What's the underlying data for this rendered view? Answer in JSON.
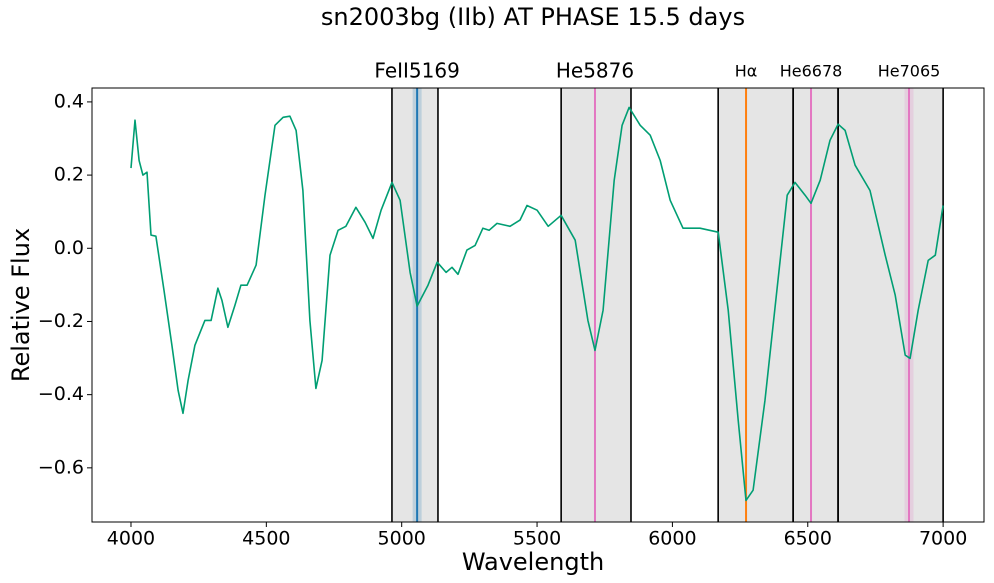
{
  "chart_data": {
    "type": "line",
    "title": "sn2003bg (IIb) AT PHASE 15.5 days",
    "xlabel": "Wavelength",
    "ylabel": "Relative Flux",
    "color": "#009e73",
    "x": [
      4000,
      4015,
      4030,
      4044,
      4059,
      4074,
      4092,
      4122,
      4151,
      4174,
      4192,
      4211,
      4236,
      4273,
      4296,
      4321,
      4336,
      4358,
      4384,
      4406,
      4429,
      4462,
      4495,
      4532,
      4562,
      4587,
      4610,
      4635,
      4661,
      4683,
      4706,
      4735,
      4765,
      4794,
      4831,
      4865,
      4894,
      4924,
      4964,
      4994,
      5031,
      5057,
      5097,
      5131,
      5164,
      5186,
      5208,
      5241,
      5271,
      5300,
      5323,
      5352,
      5400,
      5437,
      5463,
      5500,
      5541,
      5589,
      5641,
      5688,
      5714,
      5744,
      5785,
      5814,
      5840,
      5881,
      5918,
      5955,
      5992,
      6039,
      6102,
      6169,
      6206,
      6243,
      6272,
      6298,
      6342,
      6390,
      6424,
      6453,
      6490,
      6512,
      6546,
      6582,
      6612,
      6638,
      6675,
      6730,
      6786,
      6823,
      6860,
      6878,
      6908,
      6945,
      6971,
      7000
    ],
    "values": [
      0.219,
      0.35,
      0.24,
      0.2,
      0.208,
      0.036,
      0.033,
      -0.115,
      -0.265,
      -0.388,
      -0.451,
      -0.361,
      -0.265,
      -0.197,
      -0.197,
      -0.109,
      -0.142,
      -0.216,
      -0.156,
      -0.101,
      -0.101,
      -0.046,
      0.145,
      0.336,
      0.358,
      0.361,
      0.322,
      0.158,
      -0.197,
      -0.383,
      -0.306,
      -0.019,
      0.049,
      0.06,
      0.112,
      0.071,
      0.027,
      0.104,
      0.18,
      0.131,
      -0.066,
      -0.158,
      -0.101,
      -0.038,
      -0.066,
      -0.052,
      -0.071,
      -0.005,
      0.008,
      0.055,
      0.049,
      0.068,
      0.06,
      0.077,
      0.117,
      0.104,
      0.06,
      0.09,
      0.022,
      -0.197,
      -0.279,
      -0.169,
      0.186,
      0.336,
      0.385,
      0.336,
      0.309,
      0.24,
      0.131,
      0.055,
      0.055,
      0.044,
      -0.169,
      -0.47,
      -0.689,
      -0.661,
      -0.415,
      -0.087,
      0.145,
      0.18,
      0.145,
      0.123,
      0.186,
      0.295,
      0.339,
      0.322,
      0.227,
      0.158,
      -0.019,
      -0.128,
      -0.292,
      -0.301,
      -0.169,
      -0.033,
      -0.019,
      0.117
    ],
    "xlim": [
      3856,
      7151
    ],
    "ylim": [
      -0.748,
      0.438
    ],
    "xticks": [
      4000,
      4500,
      5000,
      5500,
      6000,
      6500,
      7000
    ],
    "yticks": [
      {
        "value": -0.6,
        "label": "−0.6"
      },
      {
        "value": -0.4,
        "label": "−0.4"
      },
      {
        "value": -0.2,
        "label": "−0.2"
      },
      {
        "value": 0,
        "label": "0.0"
      },
      0.2,
      0.4
    ],
    "shaded_regions": [
      [
        4964,
        5134
      ],
      [
        5589,
        5847
      ],
      [
        6169,
        6446
      ],
      [
        6446,
        6612
      ],
      [
        6612,
        7000
      ]
    ],
    "lines": [
      {
        "label": "FeII5169",
        "x": 5057,
        "color": "#1f77b4"
      },
      {
        "label": "He5876",
        "x": 5714,
        "color": "#e377c2"
      },
      {
        "label": "Hα",
        "x": 6272,
        "color": "#ff7f0e"
      },
      {
        "label": "He6678",
        "x": 6512,
        "color": "#e377c2"
      },
      {
        "label": "He7065",
        "x": 6874,
        "color": "#e377c2"
      }
    ]
  }
}
